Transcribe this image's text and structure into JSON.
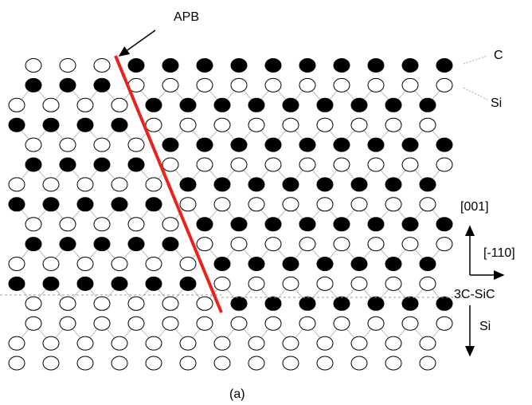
{
  "labels": {
    "apb": "APB",
    "c": "C",
    "si_layer": "Si",
    "direction_001": "[001]",
    "direction_110": "[-110]",
    "interface_top": "3C-SiC",
    "interface_bottom": "Si",
    "caption": "(a)"
  }
}
